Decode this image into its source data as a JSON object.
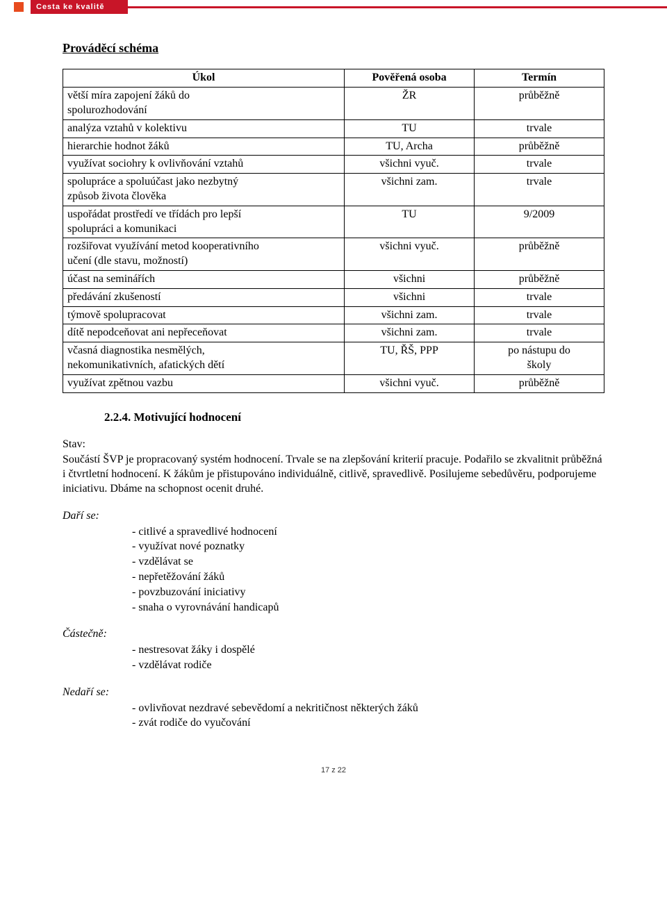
{
  "header": {
    "brand": "Cesta ke kvalitě"
  },
  "title": "Prováděcí schéma",
  "table": {
    "headers": [
      "Úkol",
      "Pověřená osoba",
      "Termín"
    ],
    "rows": [
      {
        "task": "větší míra zapojení žáků do\nspolurozhodování",
        "person": "ŽR",
        "term": "průběžně"
      },
      {
        "task": "analýza vztahů v kolektivu",
        "person": "TU",
        "term": "trvale"
      },
      {
        "task": "hierarchie hodnot žáků",
        "person": "TU, Archa",
        "term": "průběžně"
      },
      {
        "task": "využívat sociohry k ovlivňování vztahů",
        "person": "všichni vyuč.",
        "term": "trvale"
      },
      {
        "task": "spolupráce a spoluúčast jako nezbytný\nzpůsob života člověka",
        "person": "všichni zam.",
        "term": "trvale"
      },
      {
        "task": "uspořádat prostředí ve třídách pro lepší\nspolupráci a komunikaci",
        "person": "TU",
        "term": "9/2009"
      },
      {
        "task": "rozšiřovat využívání  metod kooperativního\nučení (dle stavu, možností)",
        "person": "všichni vyuč.",
        "term": "průběžně"
      },
      {
        "task": "účast na seminářích",
        "person": "všichni",
        "term": "průběžně"
      },
      {
        "task": "předávání zkušeností",
        "person": "všichni",
        "term": "trvale"
      },
      {
        "task": "týmově spolupracovat",
        "person": "všichni zam.",
        "term": "trvale"
      },
      {
        "task": "dítě nepodceňovat ani nepřeceňovat",
        "person": "všichni zam.",
        "term": "trvale"
      },
      {
        "task": "včasná diagnostika nesmělých,\nnekomunikativních, afatických dětí",
        "person": "TU, ŘŠ, PPP",
        "term": "po nástupu do\nškoly"
      },
      {
        "task": "využívat zpětnou vazbu",
        "person": "všichni vyuč.",
        "term": "průběžně"
      }
    ]
  },
  "subheading": "2.2.4.  Motivující hodnocení",
  "stav_label": "Stav:",
  "stav_text": "Součástí ŠVP je propracovaný systém hodnocení. Trvale se na zlepšování kriterií pracuje. Podařilo se zkvalitnit průběžná i čtvrtletní hodnocení. K žákům je přistupováno individuálně, citlivě, spravedlivě. Posilujeme sebedůvěru, podporujeme iniciativu. Dbáme na schopnost ocenit druhé.",
  "dari_label": "Daří se:",
  "dari_items": [
    "- citlivé a spravedlivé  hodnocení",
    "- využívat nové poznatky",
    "- vzdělávat se",
    "- nepřetěžování žáků",
    "- povzbuzování iniciativy",
    "- snaha o vyrovnávání handicapů"
  ],
  "castecne_label": "Částečně:",
  "castecne_items": [
    "- nestresovat žáky i dospělé",
    "- vzdělávat rodiče"
  ],
  "nedari_label": " Nedaří se:",
  "nedari_items": [
    "- ovlivňovat nezdravé sebevědomí a nekritičnost některých žáků",
    "- zvát rodiče do vyučování"
  ],
  "footer": "17 z 22"
}
